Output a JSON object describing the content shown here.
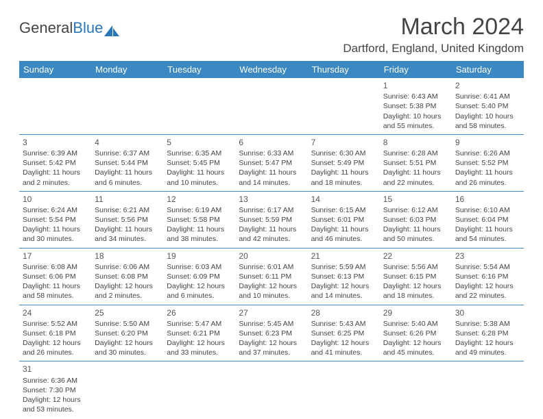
{
  "logo": {
    "text1": "General",
    "text2": "Blue"
  },
  "title": "March 2024",
  "location": "Dartford, England, United Kingdom",
  "colors": {
    "header_bg": "#3b88c3",
    "header_text": "#ffffff",
    "border": "#3b88c3",
    "text": "#444444",
    "logo_blue": "#2976b8",
    "background": "#ffffff"
  },
  "days_of_week": [
    "Sunday",
    "Monday",
    "Tuesday",
    "Wednesday",
    "Thursday",
    "Friday",
    "Saturday"
  ],
  "weeks": [
    [
      null,
      null,
      null,
      null,
      null,
      {
        "n": "1",
        "sr": "Sunrise: 6:43 AM",
        "ss": "Sunset: 5:38 PM",
        "d1": "Daylight: 10 hours",
        "d2": "and 55 minutes."
      },
      {
        "n": "2",
        "sr": "Sunrise: 6:41 AM",
        "ss": "Sunset: 5:40 PM",
        "d1": "Daylight: 10 hours",
        "d2": "and 58 minutes."
      }
    ],
    [
      {
        "n": "3",
        "sr": "Sunrise: 6:39 AM",
        "ss": "Sunset: 5:42 PM",
        "d1": "Daylight: 11 hours",
        "d2": "and 2 minutes."
      },
      {
        "n": "4",
        "sr": "Sunrise: 6:37 AM",
        "ss": "Sunset: 5:44 PM",
        "d1": "Daylight: 11 hours",
        "d2": "and 6 minutes."
      },
      {
        "n": "5",
        "sr": "Sunrise: 6:35 AM",
        "ss": "Sunset: 5:45 PM",
        "d1": "Daylight: 11 hours",
        "d2": "and 10 minutes."
      },
      {
        "n": "6",
        "sr": "Sunrise: 6:33 AM",
        "ss": "Sunset: 5:47 PM",
        "d1": "Daylight: 11 hours",
        "d2": "and 14 minutes."
      },
      {
        "n": "7",
        "sr": "Sunrise: 6:30 AM",
        "ss": "Sunset: 5:49 PM",
        "d1": "Daylight: 11 hours",
        "d2": "and 18 minutes."
      },
      {
        "n": "8",
        "sr": "Sunrise: 6:28 AM",
        "ss": "Sunset: 5:51 PM",
        "d1": "Daylight: 11 hours",
        "d2": "and 22 minutes."
      },
      {
        "n": "9",
        "sr": "Sunrise: 6:26 AM",
        "ss": "Sunset: 5:52 PM",
        "d1": "Daylight: 11 hours",
        "d2": "and 26 minutes."
      }
    ],
    [
      {
        "n": "10",
        "sr": "Sunrise: 6:24 AM",
        "ss": "Sunset: 5:54 PM",
        "d1": "Daylight: 11 hours",
        "d2": "and 30 minutes."
      },
      {
        "n": "11",
        "sr": "Sunrise: 6:21 AM",
        "ss": "Sunset: 5:56 PM",
        "d1": "Daylight: 11 hours",
        "d2": "and 34 minutes."
      },
      {
        "n": "12",
        "sr": "Sunrise: 6:19 AM",
        "ss": "Sunset: 5:58 PM",
        "d1": "Daylight: 11 hours",
        "d2": "and 38 minutes."
      },
      {
        "n": "13",
        "sr": "Sunrise: 6:17 AM",
        "ss": "Sunset: 5:59 PM",
        "d1": "Daylight: 11 hours",
        "d2": "and 42 minutes."
      },
      {
        "n": "14",
        "sr": "Sunrise: 6:15 AM",
        "ss": "Sunset: 6:01 PM",
        "d1": "Daylight: 11 hours",
        "d2": "and 46 minutes."
      },
      {
        "n": "15",
        "sr": "Sunrise: 6:12 AM",
        "ss": "Sunset: 6:03 PM",
        "d1": "Daylight: 11 hours",
        "d2": "and 50 minutes."
      },
      {
        "n": "16",
        "sr": "Sunrise: 6:10 AM",
        "ss": "Sunset: 6:04 PM",
        "d1": "Daylight: 11 hours",
        "d2": "and 54 minutes."
      }
    ],
    [
      {
        "n": "17",
        "sr": "Sunrise: 6:08 AM",
        "ss": "Sunset: 6:06 PM",
        "d1": "Daylight: 11 hours",
        "d2": "and 58 minutes."
      },
      {
        "n": "18",
        "sr": "Sunrise: 6:06 AM",
        "ss": "Sunset: 6:08 PM",
        "d1": "Daylight: 12 hours",
        "d2": "and 2 minutes."
      },
      {
        "n": "19",
        "sr": "Sunrise: 6:03 AM",
        "ss": "Sunset: 6:09 PM",
        "d1": "Daylight: 12 hours",
        "d2": "and 6 minutes."
      },
      {
        "n": "20",
        "sr": "Sunrise: 6:01 AM",
        "ss": "Sunset: 6:11 PM",
        "d1": "Daylight: 12 hours",
        "d2": "and 10 minutes."
      },
      {
        "n": "21",
        "sr": "Sunrise: 5:59 AM",
        "ss": "Sunset: 6:13 PM",
        "d1": "Daylight: 12 hours",
        "d2": "and 14 minutes."
      },
      {
        "n": "22",
        "sr": "Sunrise: 5:56 AM",
        "ss": "Sunset: 6:15 PM",
        "d1": "Daylight: 12 hours",
        "d2": "and 18 minutes."
      },
      {
        "n": "23",
        "sr": "Sunrise: 5:54 AM",
        "ss": "Sunset: 6:16 PM",
        "d1": "Daylight: 12 hours",
        "d2": "and 22 minutes."
      }
    ],
    [
      {
        "n": "24",
        "sr": "Sunrise: 5:52 AM",
        "ss": "Sunset: 6:18 PM",
        "d1": "Daylight: 12 hours",
        "d2": "and 26 minutes."
      },
      {
        "n": "25",
        "sr": "Sunrise: 5:50 AM",
        "ss": "Sunset: 6:20 PM",
        "d1": "Daylight: 12 hours",
        "d2": "and 30 minutes."
      },
      {
        "n": "26",
        "sr": "Sunrise: 5:47 AM",
        "ss": "Sunset: 6:21 PM",
        "d1": "Daylight: 12 hours",
        "d2": "and 33 minutes."
      },
      {
        "n": "27",
        "sr": "Sunrise: 5:45 AM",
        "ss": "Sunset: 6:23 PM",
        "d1": "Daylight: 12 hours",
        "d2": "and 37 minutes."
      },
      {
        "n": "28",
        "sr": "Sunrise: 5:43 AM",
        "ss": "Sunset: 6:25 PM",
        "d1": "Daylight: 12 hours",
        "d2": "and 41 minutes."
      },
      {
        "n": "29",
        "sr": "Sunrise: 5:40 AM",
        "ss": "Sunset: 6:26 PM",
        "d1": "Daylight: 12 hours",
        "d2": "and 45 minutes."
      },
      {
        "n": "30",
        "sr": "Sunrise: 5:38 AM",
        "ss": "Sunset: 6:28 PM",
        "d1": "Daylight: 12 hours",
        "d2": "and 49 minutes."
      }
    ],
    [
      {
        "n": "31",
        "sr": "Sunrise: 6:36 AM",
        "ss": "Sunset: 7:30 PM",
        "d1": "Daylight: 12 hours",
        "d2": "and 53 minutes."
      },
      null,
      null,
      null,
      null,
      null,
      null
    ]
  ]
}
